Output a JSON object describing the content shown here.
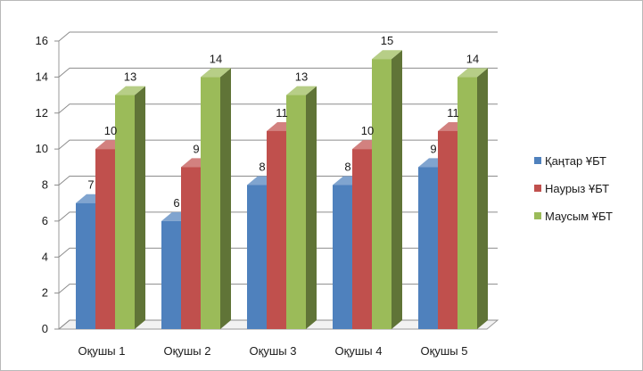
{
  "chart_data": {
    "type": "bar",
    "style": "3d-clustered-column",
    "categories": [
      "Оқушы 1",
      "Оқушы 2",
      "Оқушы 3",
      "Оқушы 4",
      "Оқушы 5"
    ],
    "series": [
      {
        "name": "Қаңтар ҰБТ",
        "values": [
          7,
          6,
          8,
          8,
          9
        ],
        "color": "#4f81bd"
      },
      {
        "name": "Наурыз ҰБТ",
        "values": [
          10,
          9,
          11,
          10,
          11
        ],
        "color": "#c0504d"
      },
      {
        "name": "Маусым ҰБТ",
        "values": [
          13,
          14,
          13,
          15,
          14
        ],
        "color": "#9bbb59"
      }
    ],
    "ylim": [
      0,
      16
    ],
    "yticks": [
      0,
      2,
      4,
      6,
      8,
      10,
      12,
      14,
      16
    ],
    "grid": true,
    "legend_position": "right",
    "data_labels": true
  }
}
